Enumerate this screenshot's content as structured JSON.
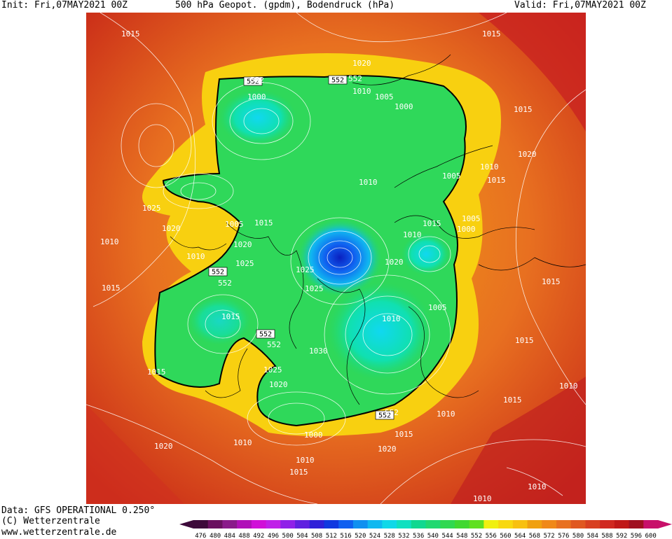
{
  "header": {
    "init": "Init: Fri,07MAY2021 00Z",
    "title": "500 hPa Geopot. (gpdm), Bodendruck (hPa)",
    "valid": "Valid: Fri,07MAY2021 00Z"
  },
  "footer": {
    "data_source": "Data: GFS OPERATIONAL 0.250°",
    "copyright": "(C) Wetterzentrale",
    "website": "www.wetterzentrale.de"
  },
  "map": {
    "projection": "polar stereographic (north pole)",
    "isobar_labels": [
      "1015",
      "1015",
      "1020",
      "552",
      "552",
      "1000",
      "1010",
      "1005",
      "1000",
      "1015",
      "1020",
      "1005",
      "1010",
      "1015",
      "1025",
      "1020",
      "1005",
      "1015",
      "1015",
      "1005",
      "1010",
      "1000",
      "1010",
      "1020",
      "1010",
      "1025",
      "1025",
      "1020",
      "1010",
      "1015",
      "1015",
      "552",
      "1025",
      "1015",
      "1005",
      "1010",
      "1015",
      "552",
      "1030",
      "1025",
      "1020",
      "1015",
      "1015",
      "1010",
      "552",
      "1010",
      "1000",
      "1015",
      "1020",
      "1010",
      "1015",
      "1020",
      "1010",
      "1010",
      "1010"
    ],
    "contour_552_label": "552",
    "colors": {
      "cold_core": "#0a3dd9",
      "trough_green": "#22d84a",
      "contour_552": "#000000",
      "ridge_red": "#d83c1e",
      "isobar_line": "#ffffff"
    }
  },
  "colorbar": {
    "ticks": [
      "476",
      "480",
      "484",
      "488",
      "492",
      "496",
      "500",
      "504",
      "508",
      "512",
      "516",
      "520",
      "524",
      "528",
      "532",
      "536",
      "540",
      "544",
      "548",
      "552",
      "556",
      "560",
      "564",
      "568",
      "572",
      "576",
      "580",
      "584",
      "588",
      "592",
      "596",
      "600"
    ],
    "colors": [
      "#3d0a3a",
      "#6a1060",
      "#8a1a8a",
      "#b010b8",
      "#d010d8",
      "#c020e8",
      "#9020e8",
      "#6020e0",
      "#3020d8",
      "#1038e0",
      "#1060f0",
      "#1090f0",
      "#10b8f0",
      "#10d8e8",
      "#10e0c0",
      "#10d890",
      "#20d870",
      "#30d850",
      "#40d830",
      "#60e020",
      "#f0f010",
      "#f8d810",
      "#f8c010",
      "#f0a010",
      "#f08818",
      "#e87020",
      "#e05820",
      "#d84020",
      "#d02820",
      "#c01818",
      "#a01020",
      "#c8106a"
    ]
  }
}
